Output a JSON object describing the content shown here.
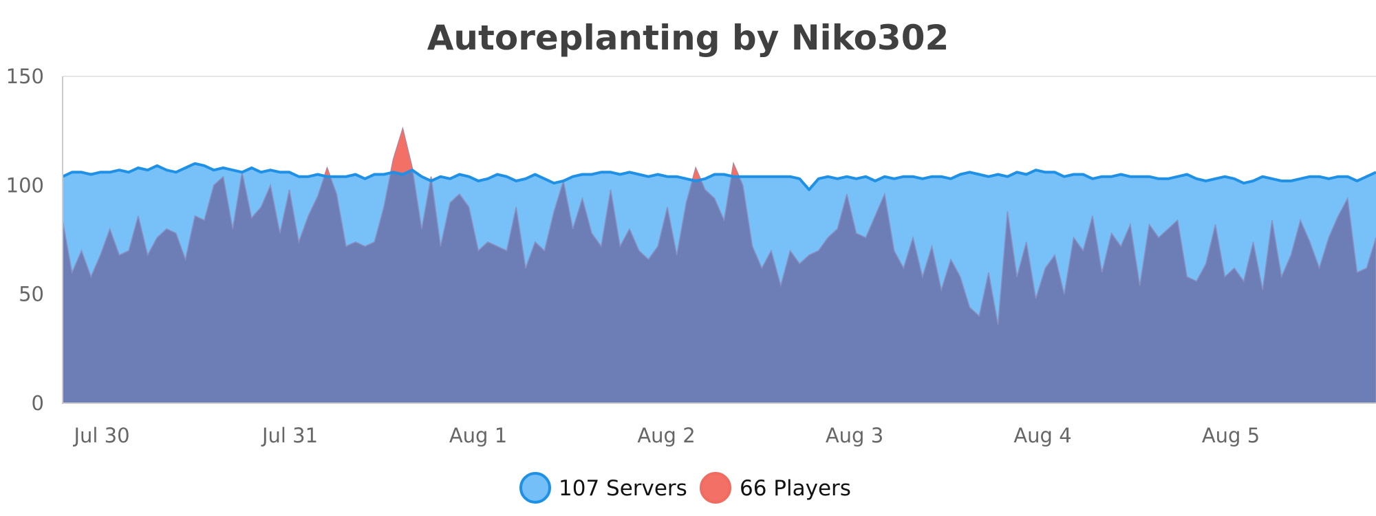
{
  "chart_data": {
    "type": "area",
    "title": "Autoreplanting by Niko302",
    "xlabel": "",
    "ylabel": "",
    "x_unit": "days",
    "x_start": "Jul 29 22:00",
    "x_step_hours": 4,
    "ylim": [
      0,
      150
    ],
    "y_ticks": [
      0,
      50,
      100,
      150
    ],
    "x_ticks": [
      "Jul 30",
      "Jul 31",
      "Aug 1",
      "Aug 2",
      "Aug 3",
      "Aug 4",
      "Aug 5"
    ],
    "grid": true,
    "legend_position": "bottom-center",
    "series": [
      {
        "name": "107 Servers",
        "color": "#1e90e6",
        "fill": "#74bff8",
        "values": [
          104,
          106,
          106,
          105,
          106,
          106,
          107,
          106,
          108,
          107,
          109,
          107,
          106,
          108,
          110,
          109,
          107,
          108,
          107,
          106,
          108,
          106,
          107,
          106,
          106,
          104,
          104,
          105,
          104,
          104,
          104,
          105,
          103,
          105,
          105,
          106,
          105,
          107,
          104,
          102,
          104,
          103,
          105,
          104,
          102,
          103,
          105,
          104,
          102,
          103,
          105,
          103,
          101,
          102,
          104,
          105,
          105,
          106,
          106,
          105,
          106,
          105,
          104,
          105,
          104,
          104,
          103,
          102,
          103,
          105,
          105,
          104,
          104,
          104,
          104,
          104,
          104,
          104,
          103,
          98,
          103,
          104,
          103,
          104,
          103,
          104,
          102,
          104,
          103,
          104,
          104,
          103,
          104,
          104,
          103,
          105,
          106,
          105,
          104,
          105,
          104,
          106,
          105,
          107,
          106,
          106,
          104,
          105,
          105,
          103,
          104,
          104,
          105,
          104,
          104,
          104,
          103,
          103,
          104,
          105,
          103,
          102,
          103,
          104,
          103,
          101,
          102,
          104,
          103,
          102,
          102,
          103,
          104,
          104,
          103,
          104,
          104,
          102,
          104,
          106
        ]
      },
      {
        "name": "66 Players",
        "color": "#f06b60",
        "fill": "#f27066",
        "values": [
          84,
          60,
          70,
          58,
          68,
          80,
          68,
          70,
          86,
          68,
          76,
          80,
          78,
          66,
          86,
          84,
          100,
          104,
          80,
          106,
          85,
          90,
          100,
          78,
          98,
          74,
          86,
          95,
          108,
          96,
          72,
          74,
          72,
          74,
          90,
          112,
          126,
          108,
          80,
          104,
          72,
          92,
          96,
          90,
          70,
          74,
          72,
          70,
          90,
          62,
          74,
          70,
          88,
          102,
          80,
          94,
          78,
          72,
          98,
          72,
          80,
          70,
          66,
          72,
          90,
          68,
          92,
          108,
          98,
          94,
          84,
          110,
          100,
          72,
          62,
          70,
          54,
          70,
          64,
          68,
          70,
          76,
          80,
          96,
          78,
          76,
          86,
          96,
          70,
          62,
          76,
          58,
          72,
          52,
          66,
          58,
          44,
          40,
          60,
          36,
          88,
          58,
          74,
          48,
          62,
          68,
          50,
          76,
          70,
          86,
          60,
          78,
          72,
          82,
          54,
          82,
          76,
          80,
          84,
          58,
          56,
          64,
          82,
          58,
          62,
          56,
          74,
          52,
          84,
          58,
          68,
          84,
          74,
          62,
          76,
          86,
          94,
          60,
          62,
          76
        ]
      }
    ]
  }
}
